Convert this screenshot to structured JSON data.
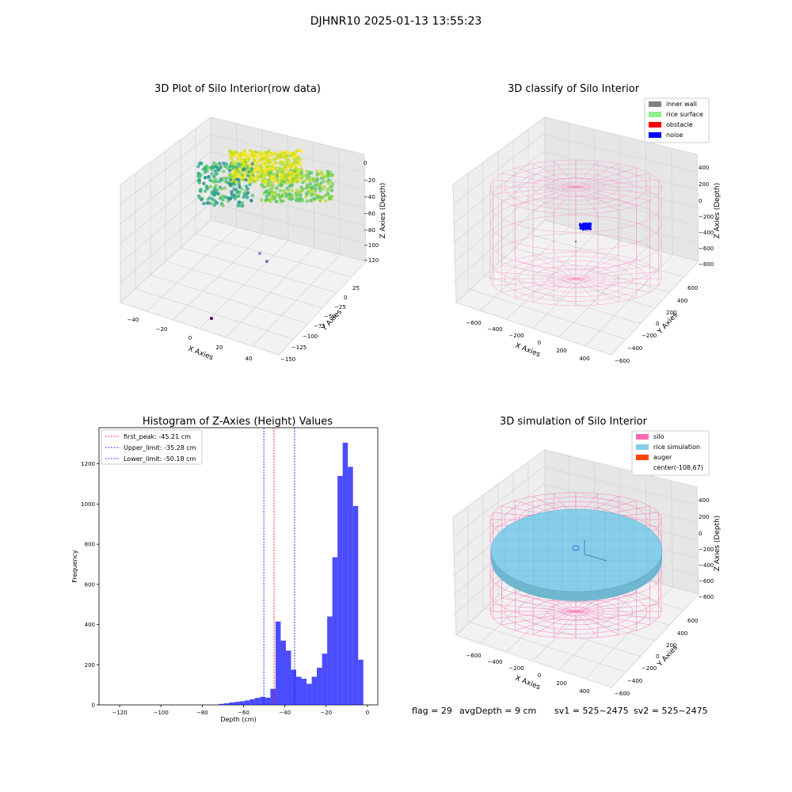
{
  "suptitle": "DJHNR10 2025-01-13 13:55:23",
  "panels": {
    "raw": {
      "title": "3D Plot of Silo Interior(row data)",
      "xlabel": "X Axies",
      "ylabel": "Y Axies",
      "zlabel": "Z Axies (Depth)",
      "xticks": [
        "−40",
        "−20",
        "0",
        "20",
        "40"
      ],
      "yticks": [
        "25",
        "0",
        "−25",
        "−50",
        "−75",
        "−100",
        "−125",
        "−150"
      ],
      "zticks": [
        "0",
        "−20",
        "−40",
        "−60",
        "−80",
        "−100",
        "−120"
      ]
    },
    "classify": {
      "title": "3D classify of Silo Interior",
      "xlabel": "X Axies",
      "ylabel": "Y Axies",
      "zlabel": "Z Axies (Depth)",
      "xticks": [
        "−600",
        "−400",
        "−200",
        "0",
        "200",
        "400"
      ],
      "yticks": [
        "600",
        "400",
        "200",
        "0",
        "−200",
        "−400",
        "−600"
      ],
      "zticks": [
        "400",
        "200",
        "0",
        "−200",
        "−400",
        "−600",
        "−800"
      ],
      "legend": [
        {
          "label": "inner wall",
          "color": "#808080"
        },
        {
          "label": "rice surface",
          "color": "#90ee90"
        },
        {
          "label": "obstacle",
          "color": "#ff0000"
        },
        {
          "label": "noise",
          "color": "#0000ff"
        }
      ]
    },
    "simulation": {
      "title": "3D simulation of Silo Interior",
      "xlabel": "X Axies",
      "ylabel": "Y Axies",
      "zlabel": "Z Axies (Depth)",
      "xticks": [
        "−600",
        "−400",
        "−200",
        "0",
        "200",
        "400"
      ],
      "yticks": [
        "600",
        "400",
        "200",
        "0",
        "−200",
        "−400",
        "−600"
      ],
      "zticks": [
        "400",
        "200",
        "0",
        "−200",
        "−400",
        "−600",
        "−800"
      ],
      "legend": [
        {
          "label": "silo",
          "color": "#ff69b4"
        },
        {
          "label": "rice simulation",
          "color": "#87ceeb"
        },
        {
          "label": "auger",
          "color": "#ff4500"
        },
        {
          "label": "center(-108,67)",
          "color": ""
        }
      ]
    }
  },
  "footer": {
    "flag": "flag = 29",
    "avg_depth": "avgDepth = 9 cm",
    "sv1": "sv1 = 525~2475",
    "sv2": "sv2 = 525~2475"
  },
  "chart_data": [
    {
      "type": "histogram",
      "title": "Histogram of Z-Axies (Height) Values",
      "xlabel": "Depth (cm)",
      "ylabel": "Frequency",
      "xlim": [
        -130,
        5
      ],
      "ylim": [
        0,
        1380
      ],
      "xticks": [
        -120,
        -100,
        -80,
        -60,
        -40,
        -20,
        0
      ],
      "xtick_labels": [
        "−120",
        "−100",
        "−80",
        "−60",
        "−40",
        "−20",
        "0"
      ],
      "yticks": [
        0,
        200,
        400,
        600,
        800,
        1000,
        1200
      ],
      "bar_color": "#0000ff",
      "bins": [
        {
          "x0": -72,
          "x1": -69.5,
          "count": 5
        },
        {
          "x0": -69.5,
          "x1": -67,
          "count": 8
        },
        {
          "x0": -67,
          "x1": -64.5,
          "count": 12
        },
        {
          "x0": -64.5,
          "x1": -62,
          "count": 15
        },
        {
          "x0": -62,
          "x1": -59.5,
          "count": 18
        },
        {
          "x0": -59.5,
          "x1": -57,
          "count": 22
        },
        {
          "x0": -57,
          "x1": -54.5,
          "count": 28
        },
        {
          "x0": -54.5,
          "x1": -52,
          "count": 35
        },
        {
          "x0": -52,
          "x1": -49.5,
          "count": 40
        },
        {
          "x0": -49.5,
          "x1": -47,
          "count": 36
        },
        {
          "x0": -47,
          "x1": -44.5,
          "count": 80
        },
        {
          "x0": -44.5,
          "x1": -42,
          "count": 415
        },
        {
          "x0": -42,
          "x1": -39.5,
          "count": 320
        },
        {
          "x0": -39.5,
          "x1": -37,
          "count": 270
        },
        {
          "x0": -37,
          "x1": -34.5,
          "count": 175
        },
        {
          "x0": -34.5,
          "x1": -32,
          "count": 140
        },
        {
          "x0": -32,
          "x1": -29.5,
          "count": 130
        },
        {
          "x0": -29.5,
          "x1": -27,
          "count": 105
        },
        {
          "x0": -27,
          "x1": -24.5,
          "count": 140
        },
        {
          "x0": -24.5,
          "x1": -22,
          "count": 185
        },
        {
          "x0": -22,
          "x1": -19.5,
          "count": 255
        },
        {
          "x0": -19.5,
          "x1": -17,
          "count": 440
        },
        {
          "x0": -17,
          "x1": -14.5,
          "count": 735
        },
        {
          "x0": -14.5,
          "x1": -12,
          "count": 1140
        },
        {
          "x0": -12,
          "x1": -9.5,
          "count": 1305
        },
        {
          "x0": -9.5,
          "x1": -7,
          "count": 1185
        },
        {
          "x0": -7,
          "x1": -4.5,
          "count": 990
        },
        {
          "x0": -4.5,
          "x1": -2,
          "count": 225
        }
      ],
      "vlines": [
        {
          "label": "first_peak: -45.21 cm",
          "x": -45.21,
          "color": "#ff0000"
        },
        {
          "label": "Upper_limit: -35.28 cm",
          "x": -35.28,
          "color": "#0000ff"
        },
        {
          "label": "Lower_limit: -50.18 cm",
          "x": -50.18,
          "color": "#0000ff"
        }
      ],
      "legend_position": "top-left"
    }
  ]
}
